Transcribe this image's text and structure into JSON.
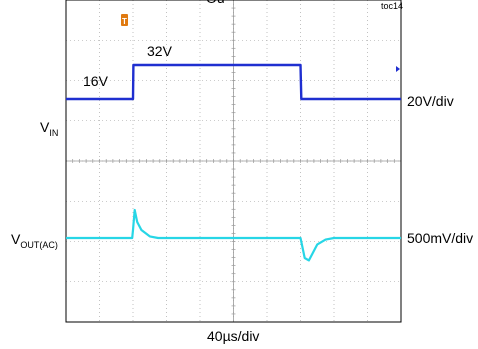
{
  "header": {
    "title_fragment": "Ou",
    "tag": "toc14"
  },
  "channels": {
    "vin_label": "V",
    "vin_sub": "IN",
    "vin_scale": "20V/div",
    "vout_label": "V",
    "vout_sub": "OUT(AC)",
    "vout_scale": "500mV/div"
  },
  "annotations": {
    "low_level": "16V",
    "high_level": "32V"
  },
  "xaxis": {
    "timebase": "40µs/div"
  },
  "colors": {
    "vin": "#1f2fd0",
    "vout": "#27d6e6",
    "grid": "#9a9a9a",
    "trigger_marker": "#e07a10"
  },
  "chart_data": {
    "type": "line",
    "xlabel": "40µs/div",
    "x_unit": "µs",
    "xlim": [
      0,
      400
    ],
    "grid": true,
    "series": [
      {
        "name": "VIN",
        "scale": "20V/div",
        "points": [
          [
            0,
            16
          ],
          [
            80,
            16
          ],
          [
            80.5,
            32
          ],
          [
            280,
            32
          ],
          [
            281,
            16
          ],
          [
            400,
            16
          ]
        ]
      },
      {
        "name": "VOUT(AC)",
        "scale": "500mV/div",
        "points": [
          [
            0,
            0
          ],
          [
            79,
            0
          ],
          [
            80,
            0.1
          ],
          [
            82,
            0.35
          ],
          [
            85,
            0.2
          ],
          [
            90,
            0.1
          ],
          [
            100,
            0.02
          ],
          [
            110,
            0
          ],
          [
            280,
            0
          ],
          [
            282,
            -0.1
          ],
          [
            285,
            -0.25
          ],
          [
            290,
            -0.28
          ],
          [
            295,
            -0.18
          ],
          [
            300,
            -0.08
          ],
          [
            310,
            -0.02
          ],
          [
            320,
            0
          ],
          [
            400,
            0
          ]
        ]
      }
    ]
  }
}
